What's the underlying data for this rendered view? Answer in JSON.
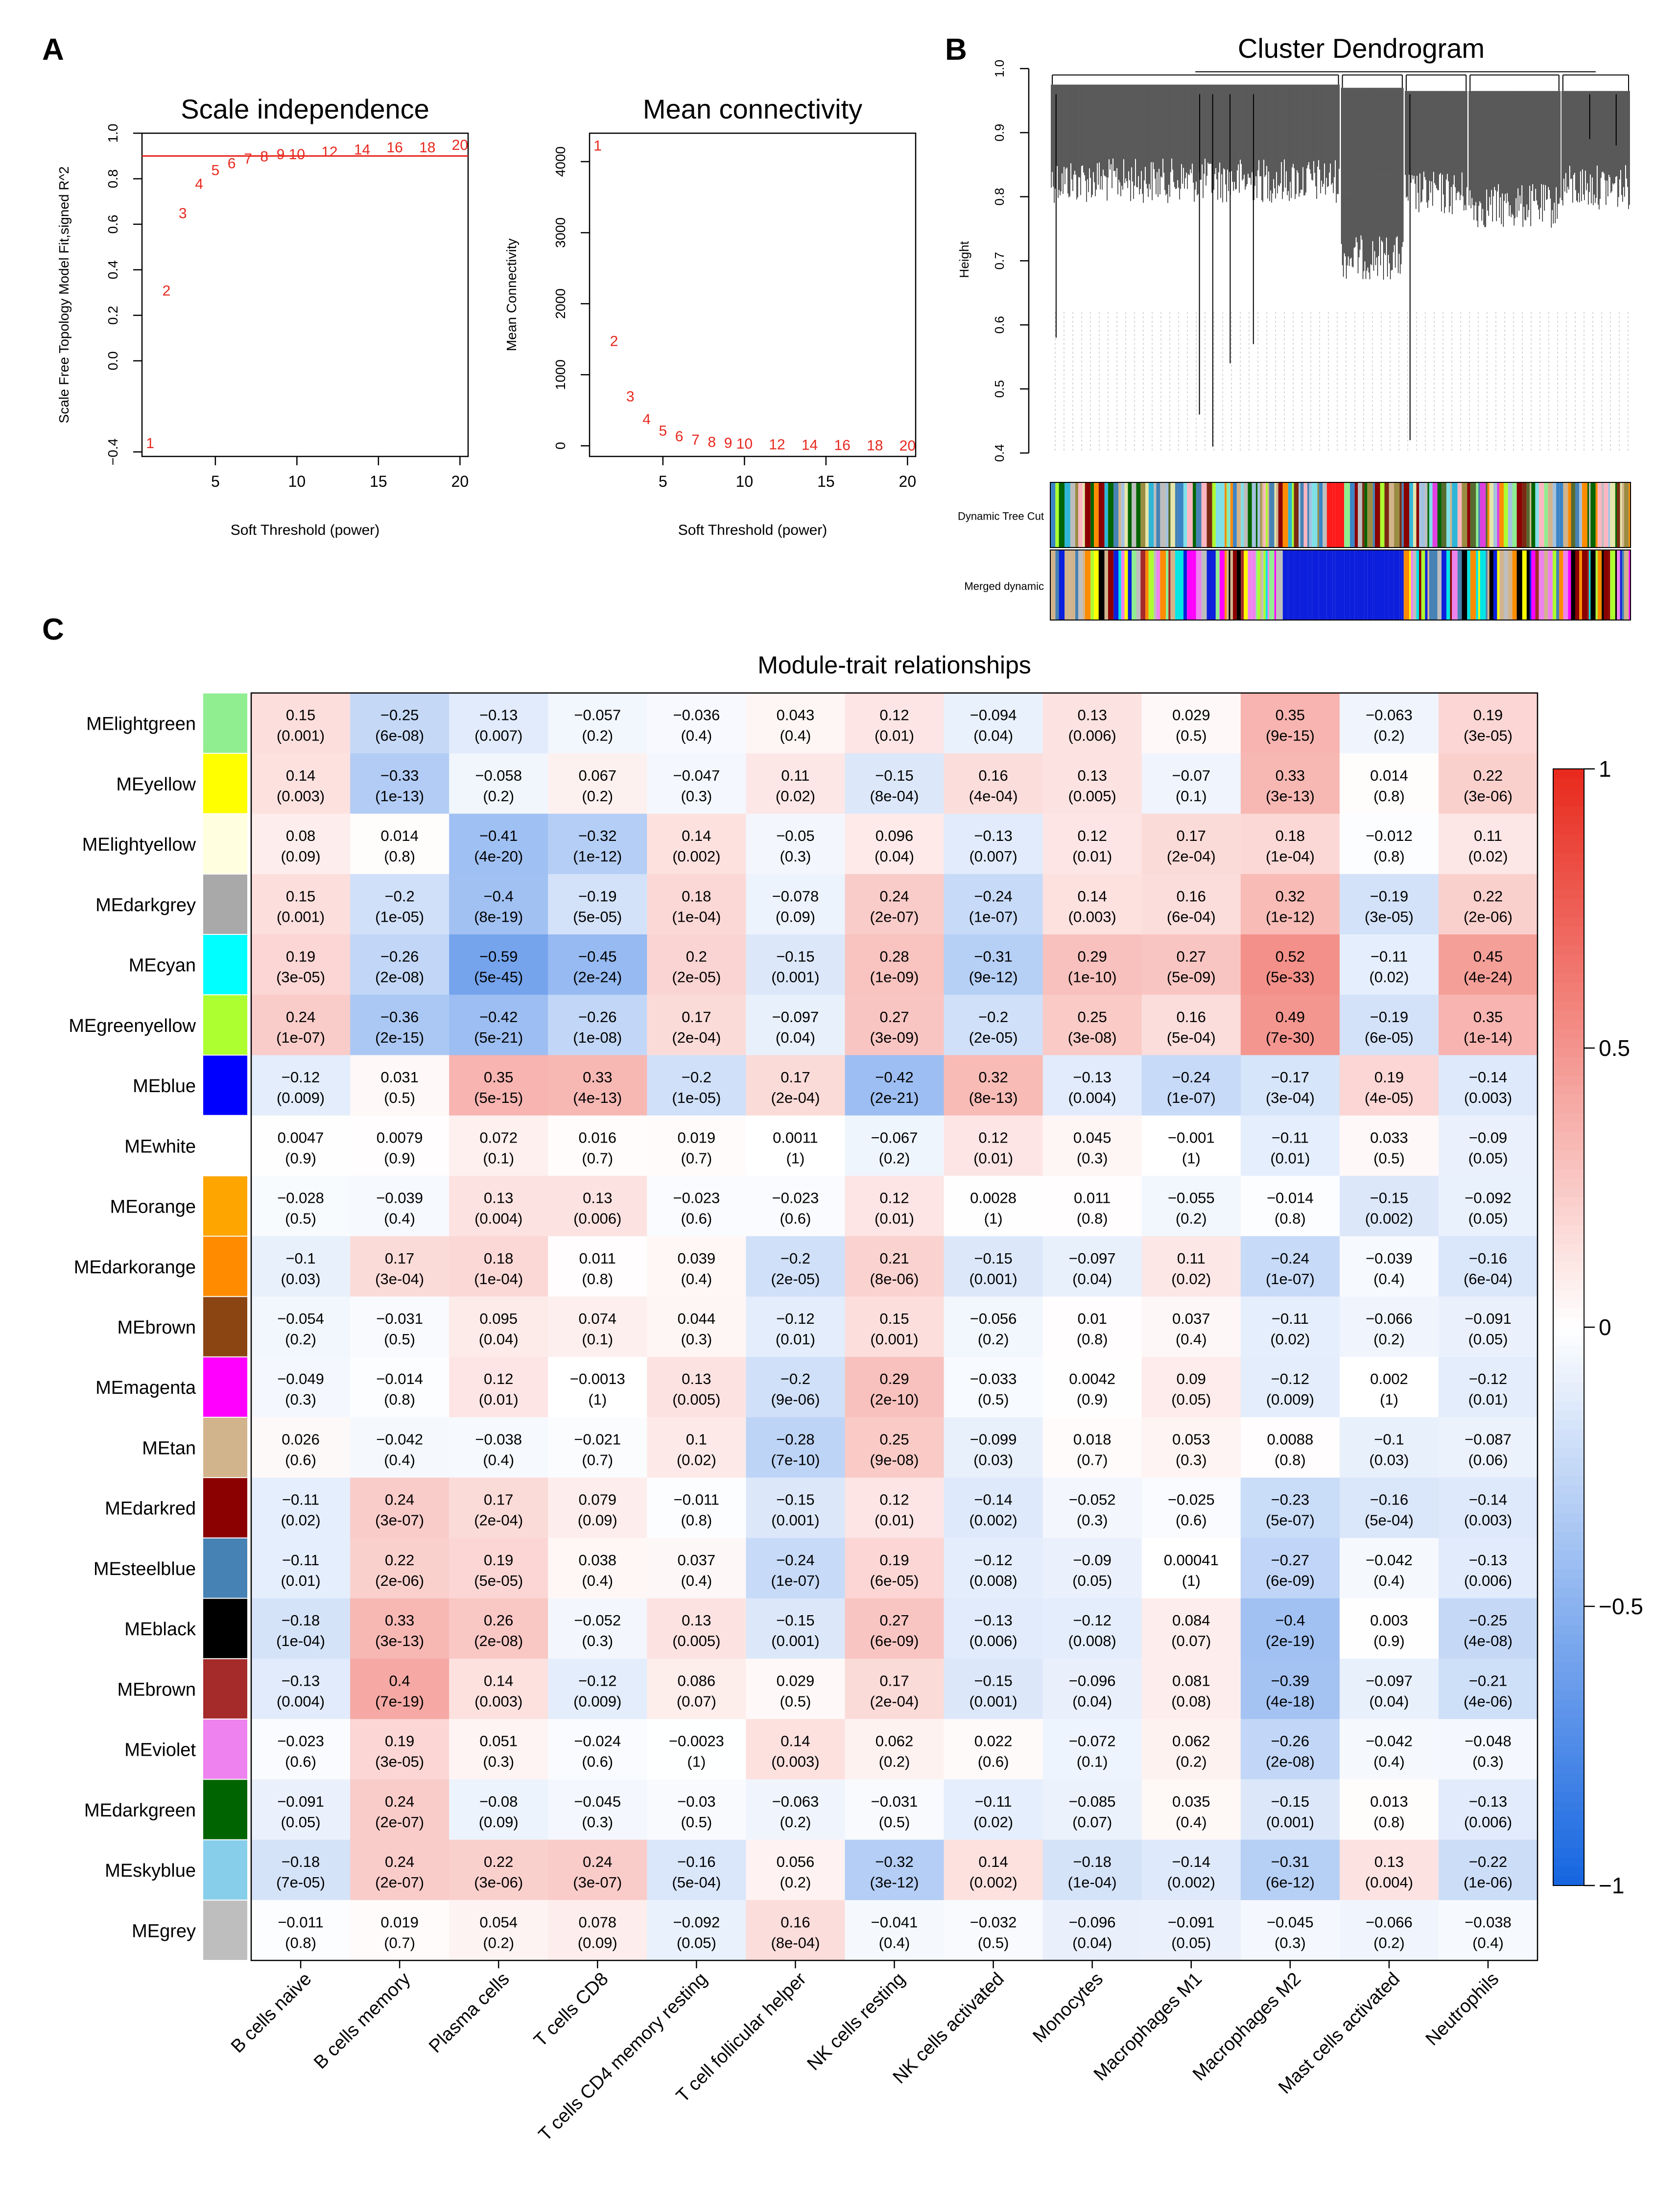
{
  "panels": {
    "a": "A",
    "b": "B",
    "c": "C"
  },
  "chart_data": [
    {
      "type": "scatter",
      "title": "Scale independence",
      "xlabel": "Soft Threshold (power)",
      "ylabel": "Scale Free Topology Model Fit,signed R^2",
      "xlim": [
        0.5,
        20.5
      ],
      "ylim": [
        -0.42,
        1.0
      ],
      "xticks": [
        5,
        10,
        15,
        20
      ],
      "yticks": [
        -0.4,
        0.0,
        0.2,
        0.4,
        0.6,
        0.8,
        1.0
      ],
      "ytick_labels": [
        "−0.4",
        "0.0",
        "0.2",
        "0.4",
        "0.6",
        "0.8",
        "1.0"
      ],
      "hline": 0.9,
      "marker_color": "#e8281e",
      "points": [
        {
          "x": 1,
          "y": -0.36,
          "label": "1"
        },
        {
          "x": 2,
          "y": 0.31,
          "label": "2"
        },
        {
          "x": 3,
          "y": 0.65,
          "label": "3"
        },
        {
          "x": 4,
          "y": 0.78,
          "label": "4"
        },
        {
          "x": 5,
          "y": 0.84,
          "label": "5"
        },
        {
          "x": 6,
          "y": 0.87,
          "label": "6"
        },
        {
          "x": 7,
          "y": 0.89,
          "label": "7"
        },
        {
          "x": 8,
          "y": 0.9,
          "label": "8"
        },
        {
          "x": 9,
          "y": 0.91,
          "label": "9"
        },
        {
          "x": 10,
          "y": 0.91,
          "label": "10"
        },
        {
          "x": 12,
          "y": 0.92,
          "label": "12"
        },
        {
          "x": 14,
          "y": 0.93,
          "label": "14"
        },
        {
          "x": 16,
          "y": 0.94,
          "label": "16"
        },
        {
          "x": 18,
          "y": 0.94,
          "label": "18"
        },
        {
          "x": 20,
          "y": 0.95,
          "label": "20"
        }
      ]
    },
    {
      "type": "scatter",
      "title": "Mean connectivity",
      "xlabel": "Soft Threshold (power)",
      "ylabel": "Mean Connectivity",
      "xlim": [
        0.5,
        20.5
      ],
      "ylim": [
        -150,
        4400
      ],
      "xticks": [
        5,
        10,
        15,
        20
      ],
      "yticks": [
        0,
        1000,
        2000,
        3000,
        4000
      ],
      "ytick_labels": [
        "0",
        "1000",
        "2000",
        "3000",
        "4000"
      ],
      "marker_color": "#e8281e",
      "points": [
        {
          "x": 1,
          "y": 4230,
          "label": "1"
        },
        {
          "x": 2,
          "y": 1480,
          "label": "2"
        },
        {
          "x": 3,
          "y": 700,
          "label": "3"
        },
        {
          "x": 4,
          "y": 380,
          "label": "4"
        },
        {
          "x": 5,
          "y": 220,
          "label": "5"
        },
        {
          "x": 6,
          "y": 140,
          "label": "6"
        },
        {
          "x": 7,
          "y": 90,
          "label": "7"
        },
        {
          "x": 8,
          "y": 60,
          "label": "8"
        },
        {
          "x": 9,
          "y": 45,
          "label": "9"
        },
        {
          "x": 10,
          "y": 35,
          "label": "10"
        },
        {
          "x": 12,
          "y": 25,
          "label": "12"
        },
        {
          "x": 14,
          "y": 20,
          "label": "14"
        },
        {
          "x": 16,
          "y": 15,
          "label": "16"
        },
        {
          "x": 18,
          "y": 12,
          "label": "18"
        },
        {
          "x": 20,
          "y": 10,
          "label": "20"
        }
      ]
    },
    {
      "type": "dendrogram",
      "title": "Cluster Dendrogram",
      "ylabel": "Height",
      "ylim": [
        0.4,
        1.0
      ],
      "yticks": [
        0.4,
        0.5,
        0.6,
        0.7,
        0.8,
        0.9,
        1.0
      ],
      "ytick_labels": [
        "0.4",
        "0.5",
        "0.6",
        "0.7",
        "0.8",
        "0.9",
        "1.0"
      ],
      "color_rows": [
        "Dynamic Tree Cut",
        "Merged dynamic"
      ],
      "palette": [
        "#7a2a12",
        "#a4c2e0",
        "#2fb5d8",
        "#3b84c6",
        "#7fe0e8",
        "#9b8c43",
        "#e6e6aa",
        "#90ee90",
        "#adff2f",
        "#ff8c00",
        "#d2b48c",
        "#8b0000",
        "#ffb6c1",
        "#4682b4",
        "#556b2f",
        "#bdbdbd",
        "#006400",
        "#e040e0"
      ],
      "merged_palette": [
        "#0b1fdc",
        "#90ee90",
        "#ffff00",
        "#8b0000",
        "#a52a2a",
        "#ff8c00",
        "#000000",
        "#ee82ee",
        "#00e5e5",
        "#d2b48c",
        "#bebebe",
        "#ff00ff",
        "#adff2f",
        "#4682b4"
      ],
      "dynamic_feature": {
        "start": 0.471,
        "end": 0.504,
        "color": "#ff1a1a"
      },
      "merged_feature": {
        "start": 0.398,
        "end": 0.608,
        "color": "#0b1fdc"
      }
    },
    {
      "type": "heatmap",
      "title": "Module-trait relationships",
      "columns": [
        "B cells naive",
        "B cells memory",
        "Plasma cells",
        "T cells CD8",
        "T cells CD4 memory resting",
        "T cell follicular helper",
        "NK cells resting",
        "NK cells activated",
        "Monocytes",
        "Macrophages M1",
        "Macrophages M2",
        "Mast cells activated",
        "Neutrophils"
      ],
      "colorbar": {
        "min": -1,
        "max": 1,
        "ticks": [
          1,
          0.5,
          0,
          -0.5,
          -1
        ],
        "tick_labels": [
          "1",
          "0.5",
          "0",
          "−0.5",
          "−1"
        ],
        "low_color": "#1565e0",
        "mid_color": "#ffffff",
        "high_color": "#e8291c"
      },
      "rows": [
        {
          "name": "MElightgreen",
          "color": "#90ee90",
          "values": [
            0.15,
            -0.25,
            -0.13,
            -0.057,
            -0.036,
            0.043,
            0.12,
            -0.094,
            0.13,
            0.029,
            0.35,
            -0.063,
            0.19
          ],
          "pvalues": [
            "0.001",
            "6e-08",
            "0.007",
            "0.2",
            "0.4",
            "0.4",
            "0.01",
            "0.04",
            "0.006",
            "0.5",
            "9e-15",
            "0.2",
            "3e-05"
          ]
        },
        {
          "name": "MEyellow",
          "color": "#ffff00",
          "values": [
            0.14,
            -0.33,
            -0.058,
            0.067,
            -0.047,
            0.11,
            -0.15,
            0.16,
            0.13,
            -0.07,
            0.33,
            0.014,
            0.22
          ],
          "pvalues": [
            "0.003",
            "1e-13",
            "0.2",
            "0.2",
            "0.3",
            "0.02",
            "8e-04",
            "4e-04",
            "0.005",
            "0.1",
            "3e-13",
            "0.8",
            "3e-06"
          ]
        },
        {
          "name": "MElightyellow",
          "color": "#ffffe0",
          "values": [
            0.08,
            0.014,
            -0.41,
            -0.32,
            0.14,
            -0.05,
            0.096,
            -0.13,
            0.12,
            0.17,
            0.18,
            -0.012,
            0.11
          ],
          "pvalues": [
            "0.09",
            "0.8",
            "4e-20",
            "1e-12",
            "0.002",
            "0.3",
            "0.04",
            "0.007",
            "0.01",
            "2e-04",
            "1e-04",
            "0.8",
            "0.02"
          ]
        },
        {
          "name": "MEdarkgrey",
          "color": "#a9a9a9",
          "values": [
            0.15,
            -0.2,
            -0.4,
            -0.19,
            0.18,
            -0.078,
            0.24,
            -0.24,
            0.14,
            0.16,
            0.32,
            -0.19,
            0.22
          ],
          "pvalues": [
            "0.001",
            "1e-05",
            "8e-19",
            "5e-05",
            "1e-04",
            "0.09",
            "2e-07",
            "1e-07",
            "0.003",
            "6e-04",
            "1e-12",
            "3e-05",
            "2e-06"
          ]
        },
        {
          "name": "MEcyan",
          "color": "#00ffff",
          "values": [
            0.19,
            -0.26,
            -0.59,
            -0.45,
            0.2,
            -0.15,
            0.28,
            -0.31,
            0.29,
            0.27,
            0.52,
            -0.11,
            0.45
          ],
          "pvalues": [
            "3e-05",
            "2e-08",
            "5e-45",
            "2e-24",
            "2e-05",
            "0.001",
            "1e-09",
            "9e-12",
            "1e-10",
            "5e-09",
            "5e-33",
            "0.02",
            "4e-24"
          ]
        },
        {
          "name": "MEgreenyellow",
          "color": "#adff2f",
          "values": [
            0.24,
            -0.36,
            -0.42,
            -0.26,
            0.17,
            -0.097,
            0.27,
            -0.2,
            0.25,
            0.16,
            0.49,
            -0.19,
            0.35
          ],
          "pvalues": [
            "1e-07",
            "2e-15",
            "5e-21",
            "1e-08",
            "2e-04",
            "0.04",
            "3e-09",
            "2e-05",
            "3e-08",
            "5e-04",
            "7e-30",
            "6e-05",
            "1e-14"
          ]
        },
        {
          "name": "MEblue",
          "color": "#0000ff",
          "values": [
            -0.12,
            0.031,
            0.35,
            0.33,
            -0.2,
            0.17,
            -0.42,
            0.32,
            -0.13,
            -0.24,
            -0.17,
            0.19,
            -0.14
          ],
          "pvalues": [
            "0.009",
            "0.5",
            "5e-15",
            "4e-13",
            "1e-05",
            "2e-04",
            "2e-21",
            "8e-13",
            "0.004",
            "1e-07",
            "3e-04",
            "4e-05",
            "0.003"
          ]
        },
        {
          "name": "MEwhite",
          "color": "#ffffff",
          "values": [
            0.0047,
            0.0079,
            0.072,
            0.016,
            0.019,
            0.0011,
            -0.067,
            0.12,
            0.045,
            -0.001,
            -0.11,
            0.033,
            -0.09
          ],
          "pvalues": [
            "0.9",
            "0.9",
            "0.1",
            "0.7",
            "0.7",
            "1",
            "0.2",
            "0.01",
            "0.3",
            "1",
            "0.01",
            "0.5",
            "0.05"
          ]
        },
        {
          "name": "MEorange",
          "color": "#ffa500",
          "values": [
            -0.028,
            -0.039,
            0.13,
            0.13,
            -0.023,
            -0.023,
            0.12,
            0.0028,
            0.011,
            -0.055,
            -0.014,
            -0.15,
            -0.092
          ],
          "pvalues": [
            "0.5",
            "0.4",
            "0.004",
            "0.006",
            "0.6",
            "0.6",
            "0.01",
            "1",
            "0.8",
            "0.2",
            "0.8",
            "0.002",
            "0.05"
          ]
        },
        {
          "name": "MEdarkorange",
          "color": "#ff8c00",
          "values": [
            -0.1,
            0.17,
            0.18,
            0.011,
            0.039,
            -0.2,
            0.21,
            -0.15,
            -0.097,
            0.11,
            -0.24,
            -0.039,
            -0.16
          ],
          "pvalues": [
            "0.03",
            "3e-04",
            "1e-04",
            "0.8",
            "0.4",
            "2e-05",
            "8e-06",
            "0.001",
            "0.04",
            "0.02",
            "1e-07",
            "0.4",
            "6e-04"
          ]
        },
        {
          "name": "MEbrown",
          "color": "#8b4513",
          "values": [
            -0.054,
            -0.031,
            0.095,
            0.074,
            0.044,
            -0.12,
            0.15,
            -0.056,
            0.01,
            0.037,
            -0.11,
            -0.066,
            -0.091
          ],
          "pvalues": [
            "0.2",
            "0.5",
            "0.04",
            "0.1",
            "0.3",
            "0.01",
            "0.001",
            "0.2",
            "0.8",
            "0.4",
            "0.02",
            "0.2",
            "0.05"
          ]
        },
        {
          "name": "MEmagenta",
          "color": "#ff00ff",
          "values": [
            -0.049,
            -0.014,
            0.12,
            -0.0013,
            0.13,
            -0.2,
            0.29,
            -0.033,
            0.0042,
            0.09,
            -0.12,
            0.002,
            -0.12
          ],
          "pvalues": [
            "0.3",
            "0.8",
            "0.01",
            "1",
            "0.005",
            "9e-06",
            "2e-10",
            "0.5",
            "0.9",
            "0.05",
            "0.009",
            "1",
            "0.01"
          ]
        },
        {
          "name": "MEtan",
          "color": "#d2b48c",
          "values": [
            0.026,
            -0.042,
            -0.038,
            -0.021,
            0.1,
            -0.28,
            0.25,
            -0.099,
            0.018,
            0.053,
            0.0088,
            -0.1,
            -0.087
          ],
          "pvalues": [
            "0.6",
            "0.4",
            "0.4",
            "0.7",
            "0.02",
            "7e-10",
            "9e-08",
            "0.03",
            "0.7",
            "0.3",
            "0.8",
            "0.03",
            "0.06"
          ]
        },
        {
          "name": "MEdarkred",
          "color": "#8b0000",
          "values": [
            -0.11,
            0.24,
            0.17,
            0.079,
            -0.011,
            -0.15,
            0.12,
            -0.14,
            -0.052,
            -0.025,
            -0.23,
            -0.16,
            -0.14
          ],
          "pvalues": [
            "0.02",
            "3e-07",
            "2e-04",
            "0.09",
            "0.8",
            "0.001",
            "0.01",
            "0.002",
            "0.3",
            "0.6",
            "5e-07",
            "5e-04",
            "0.003"
          ]
        },
        {
          "name": "MEsteelblue",
          "color": "#4682b4",
          "values": [
            -0.11,
            0.22,
            0.19,
            0.038,
            0.037,
            -0.24,
            0.19,
            -0.12,
            -0.09,
            0.00041,
            -0.27,
            -0.042,
            -0.13
          ],
          "pvalues": [
            "0.01",
            "2e-06",
            "5e-05",
            "0.4",
            "0.4",
            "1e-07",
            "6e-05",
            "0.008",
            "0.05",
            "1",
            "6e-09",
            "0.4",
            "0.006"
          ]
        },
        {
          "name": "MEblack",
          "color": "#000000",
          "values": [
            -0.18,
            0.33,
            0.26,
            -0.052,
            0.13,
            -0.15,
            0.27,
            -0.13,
            -0.12,
            0.084,
            -0.4,
            0.003,
            -0.25
          ],
          "pvalues": [
            "1e-04",
            "3e-13",
            "2e-08",
            "0.3",
            "0.005",
            "0.001",
            "6e-09",
            "0.006",
            "0.008",
            "0.07",
            "2e-19",
            "0.9",
            "4e-08"
          ]
        },
        {
          "name": "MEbrown",
          "color": "#a52a2a",
          "values": [
            -0.13,
            0.4,
            0.14,
            -0.12,
            0.086,
            0.029,
            0.17,
            -0.15,
            -0.096,
            0.081,
            -0.39,
            -0.097,
            -0.21
          ],
          "pvalues": [
            "0.004",
            "7e-19",
            "0.003",
            "0.009",
            "0.07",
            "0.5",
            "2e-04",
            "0.001",
            "0.04",
            "0.08",
            "4e-18",
            "0.04",
            "4e-06"
          ]
        },
        {
          "name": "MEviolet",
          "color": "#ee82ee",
          "values": [
            -0.023,
            0.19,
            0.051,
            -0.024,
            -0.0023,
            0.14,
            0.062,
            0.022,
            -0.072,
            0.062,
            -0.26,
            -0.042,
            -0.048
          ],
          "pvalues": [
            "0.6",
            "3e-05",
            "0.3",
            "0.6",
            "1",
            "0.003",
            "0.2",
            "0.6",
            "0.1",
            "0.2",
            "2e-08",
            "0.4",
            "0.3"
          ]
        },
        {
          "name": "MEdarkgreen",
          "color": "#006400",
          "values": [
            -0.091,
            0.24,
            -0.08,
            -0.045,
            -0.03,
            -0.063,
            -0.031,
            -0.11,
            -0.085,
            0.035,
            -0.15,
            0.013,
            -0.13
          ],
          "pvalues": [
            "0.05",
            "2e-07",
            "0.09",
            "0.3",
            "0.5",
            "0.2",
            "0.5",
            "0.02",
            "0.07",
            "0.4",
            "0.001",
            "0.8",
            "0.006"
          ]
        },
        {
          "name": "MEskyblue",
          "color": "#87ceeb",
          "values": [
            -0.18,
            0.24,
            0.22,
            0.24,
            -0.16,
            0.056,
            -0.32,
            0.14,
            -0.18,
            -0.14,
            -0.31,
            0.13,
            -0.22
          ],
          "pvalues": [
            "7e-05",
            "2e-07",
            "3e-06",
            "3e-07",
            "5e-04",
            "0.2",
            "3e-12",
            "0.002",
            "1e-04",
            "0.002",
            "6e-12",
            "0.004",
            "1e-06"
          ]
        },
        {
          "name": "MEgrey",
          "color": "#bebebe",
          "values": [
            -0.011,
            0.019,
            0.054,
            0.078,
            -0.092,
            0.16,
            -0.041,
            -0.032,
            -0.096,
            -0.091,
            -0.045,
            -0.066,
            -0.038
          ],
          "pvalues": [
            "0.8",
            "0.7",
            "0.2",
            "0.09",
            "0.05",
            "8e-04",
            "0.4",
            "0.5",
            "0.04",
            "0.05",
            "0.3",
            "0.2",
            "0.4"
          ]
        }
      ]
    }
  ]
}
